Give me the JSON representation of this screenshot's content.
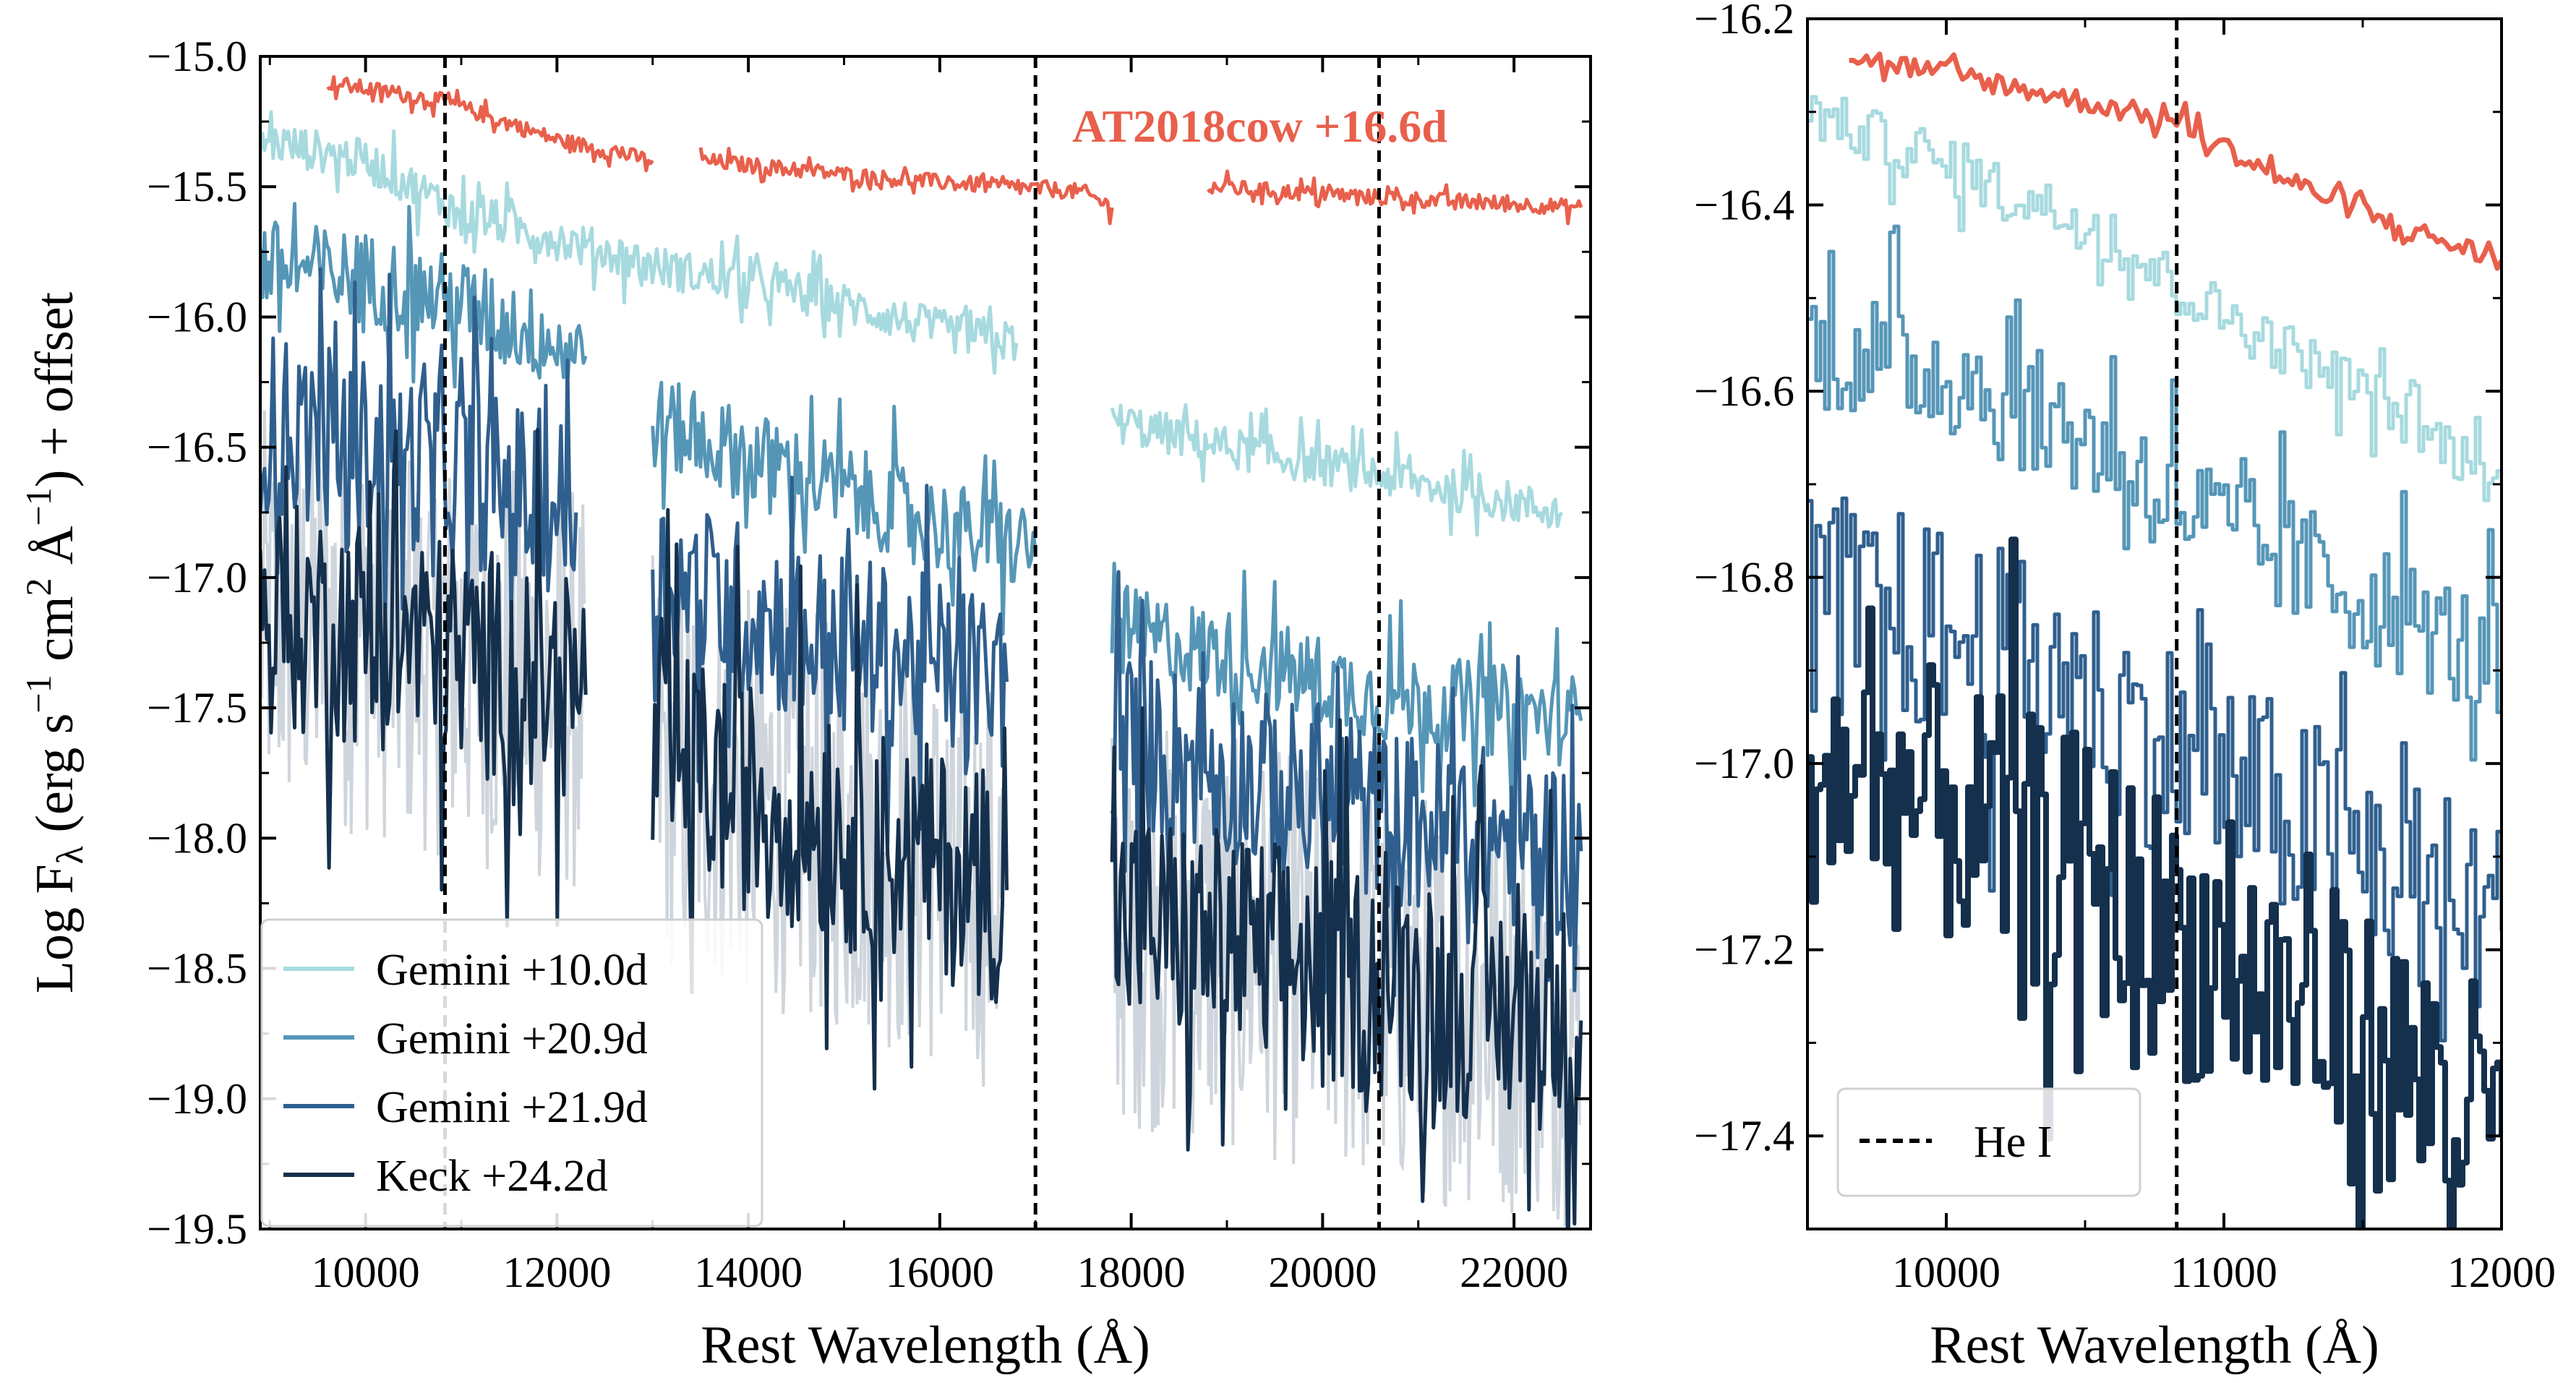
{
  "chart_data": [
    {
      "type": "line",
      "panel": "left",
      "xlabel": "Rest Wavelength (Å)",
      "ylabel_main": "Log F",
      "ylabel_sub": "λ",
      "ylabel_units": "(erg s",
      "ylabel_unit2": "cm",
      "ylabel_unit3": "Å",
      "ylabel_sup1": "−1",
      "ylabel_sup2": "2",
      "ylabel_sup3": "−1",
      "ylabel_tail": ") + offset",
      "xlim": [
        8900,
        22800
      ],
      "ylim": [
        -19.5,
        -15.0
      ],
      "xticks": [
        10000,
        12000,
        14000,
        16000,
        18000,
        20000,
        22000
      ],
      "yticks": [
        -15.0,
        -15.5,
        -16.0,
        -16.5,
        -17.0,
        -17.5,
        -18.0,
        -18.5,
        -19.0,
        -19.5
      ],
      "ytick_labels": [
        "−15.0",
        "−15.5",
        "−16.0",
        "−16.5",
        "−17.0",
        "−17.5",
        "−18.0",
        "−18.5",
        "−19.0",
        "−19.5"
      ],
      "vlines": [
        10830,
        17000,
        20590
      ],
      "annotation": {
        "text": "AT2018cow +16.6d",
        "color": "#e8604c"
      },
      "series": [
        {
          "name": "AT2018cow +16.6d",
          "color": "#e8604c",
          "segments": [
            [
              [
                9600,
                -15.1
              ],
              [
                10800,
                -15.17
              ],
              [
                12000,
                -15.32
              ],
              [
                13000,
                -15.4
              ]
            ],
            [
              [
                13500,
                -15.4
              ],
              [
                15500,
                -15.47
              ],
              [
                17500,
                -15.52
              ],
              [
                17800,
                -15.58
              ]
            ],
            [
              [
                18800,
                -15.5
              ],
              [
                20500,
                -15.54
              ],
              [
                22700,
                -15.58
              ]
            ]
          ]
        },
        {
          "name": "Gemini +10.0d",
          "color": "#a7dadf",
          "segments": [
            [
              [
                8900,
                -15.32
              ],
              [
                10000,
                -15.4
              ],
              [
                11000,
                -15.6
              ],
              [
                12500,
                -15.75
              ],
              [
                13200,
                -15.82
              ],
              [
                14500,
                -15.9
              ],
              [
                16000,
                -16.05
              ],
              [
                16800,
                -16.1
              ]
            ],
            [
              [
                17800,
                -16.4
              ],
              [
                19000,
                -16.5
              ],
              [
                20500,
                -16.6
              ],
              [
                22500,
                -16.75
              ]
            ]
          ]
        },
        {
          "name": "Gemini +20.9d",
          "color": "#5596b7",
          "segments": [
            [
              [
                8900,
                -15.8
              ],
              [
                10000,
                -15.85
              ],
              [
                11000,
                -15.95
              ],
              [
                12000,
                -16.1
              ],
              [
                12300,
                -16.15
              ]
            ],
            [
              [
                13000,
                -16.4
              ],
              [
                14500,
                -16.6
              ],
              [
                16000,
                -16.8
              ],
              [
                17000,
                -16.9
              ]
            ],
            [
              [
                17800,
                -17.2
              ],
              [
                19000,
                -17.3
              ],
              [
                20500,
                -17.45
              ],
              [
                22700,
                -17.55
              ]
            ]
          ]
        },
        {
          "name": "Gemini +21.9d",
          "color": "#2f5f8e",
          "segments": [
            [
              [
                8900,
                -16.4
              ],
              [
                10000,
                -16.5
              ],
              [
                11000,
                -16.6
              ],
              [
                12200,
                -16.75
              ]
            ],
            [
              [
                13000,
                -17.0
              ],
              [
                14500,
                -17.2
              ],
              [
                16000,
                -17.35
              ],
              [
                16700,
                -17.4
              ]
            ],
            [
              [
                17800,
                -17.6
              ],
              [
                19500,
                -17.8
              ],
              [
                21000,
                -17.95
              ],
              [
                22700,
                -18.05
              ]
            ]
          ]
        },
        {
          "name": "Keck +24.2d",
          "color": "#14304d",
          "segments": [
            [
              [
                8900,
                -17.15
              ],
              [
                10000,
                -17.2
              ],
              [
                11000,
                -17.3
              ],
              [
                12300,
                -17.45
              ]
            ],
            [
              [
                13000,
                -17.7
              ],
              [
                14500,
                -17.9
              ],
              [
                16000,
                -18.1
              ],
              [
                16700,
                -18.2
              ]
            ],
            [
              [
                17800,
                -18.3
              ],
              [
                19500,
                -18.45
              ],
              [
                21000,
                -18.6
              ],
              [
                22700,
                -18.7
              ]
            ]
          ]
        }
      ],
      "legend": {
        "placement": "lower-left",
        "entries": [
          "Gemini +10.0d",
          "Gemini +20.9d",
          "Gemini +21.9d",
          "Keck +24.2d"
        ]
      }
    },
    {
      "type": "line",
      "panel": "right",
      "xlabel": "Rest Wavelength (Å)",
      "xlim": [
        9500,
        12000
      ],
      "ylim": [
        -17.5,
        -16.2
      ],
      "xticks": [
        10000,
        11000,
        12000
      ],
      "yticks": [
        -16.2,
        -16.4,
        -16.6,
        -16.8,
        -17.0,
        -17.2,
        -17.4
      ],
      "ytick_labels": [
        "−16.2",
        "−16.4",
        "−16.6",
        "−16.8",
        "−17.0",
        "−17.2",
        "−17.4"
      ],
      "vlines": [
        10830
      ],
      "series": [
        {
          "name": "AT2018cow +16.6d",
          "color": "#e8604c",
          "segments": [
            [
              [
                9650,
                -16.24
              ],
              [
                10200,
                -16.27
              ],
              [
                10830,
                -16.31
              ],
              [
                11200,
                -16.37
              ],
              [
                11600,
                -16.42
              ],
              [
                12000,
                -16.46
              ]
            ]
          ]
        },
        {
          "name": "Gemini +10.0d",
          "color": "#a7dadf",
          "segments": [
            [
              [
                9500,
                -16.3
              ],
              [
                10000,
                -16.36
              ],
              [
                10500,
                -16.42
              ],
              [
                11000,
                -16.52
              ],
              [
                11500,
                -16.6
              ],
              [
                12000,
                -16.7
              ]
            ]
          ]
        },
        {
          "name": "Gemini +20.9d",
          "color": "#5596b7",
          "segments": [
            [
              [
                9500,
                -16.55
              ],
              [
                10000,
                -16.58
              ],
              [
                10500,
                -16.65
              ],
              [
                11000,
                -16.75
              ],
              [
                11500,
                -16.82
              ],
              [
                12000,
                -16.9
              ]
            ]
          ]
        },
        {
          "name": "Gemini +21.9d",
          "color": "#2f5f8e",
          "segments": [
            [
              [
                9500,
                -16.82
              ],
              [
                10000,
                -16.86
              ],
              [
                10500,
                -16.93
              ],
              [
                11000,
                -17.02
              ],
              [
                11500,
                -17.1
              ],
              [
                12000,
                -17.18
              ]
            ]
          ]
        },
        {
          "name": "Keck +24.2d",
          "color": "#14304d",
          "segments": [
            [
              [
                9500,
                -17.0
              ],
              [
                10000,
                -17.05
              ],
              [
                10500,
                -17.12
              ],
              [
                11000,
                -17.22
              ],
              [
                11500,
                -17.3
              ],
              [
                12000,
                -17.4
              ]
            ]
          ]
        }
      ],
      "legend": {
        "placement": "lower-left",
        "entries": [
          "He I"
        ]
      }
    }
  ]
}
